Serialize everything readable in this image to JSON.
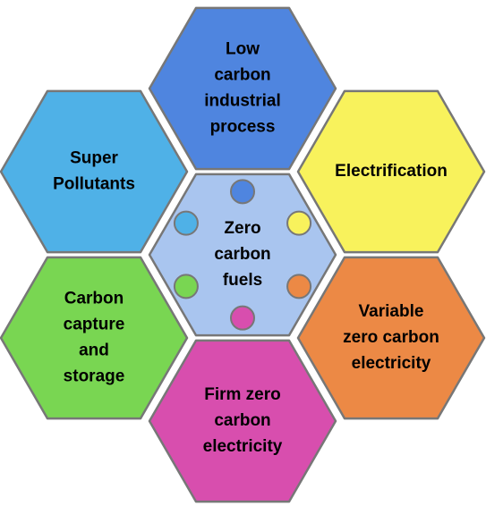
{
  "nodes": [
    {
      "label": [
        "Zero",
        "carbon",
        "fuels"
      ],
      "color": "#a9c5ef"
    },
    {
      "label": [
        "Low",
        "carbon",
        "industrial",
        "process"
      ],
      "color": "#4f85df"
    },
    {
      "label": [
        "Electrification"
      ],
      "color": "#f8f25c"
    },
    {
      "label": [
        "Variable",
        "zero carbon",
        "electricity"
      ],
      "color": "#ec8945"
    },
    {
      "label": [
        "Firm zero",
        "carbon",
        "electricity"
      ],
      "color": "#d84eae"
    },
    {
      "label": [
        "Carbon",
        "capture",
        "and",
        "storage"
      ],
      "color": "#79d652"
    },
    {
      "label": [
        "Super",
        "Pollutants"
      ],
      "color": "#4fb1e7"
    }
  ]
}
